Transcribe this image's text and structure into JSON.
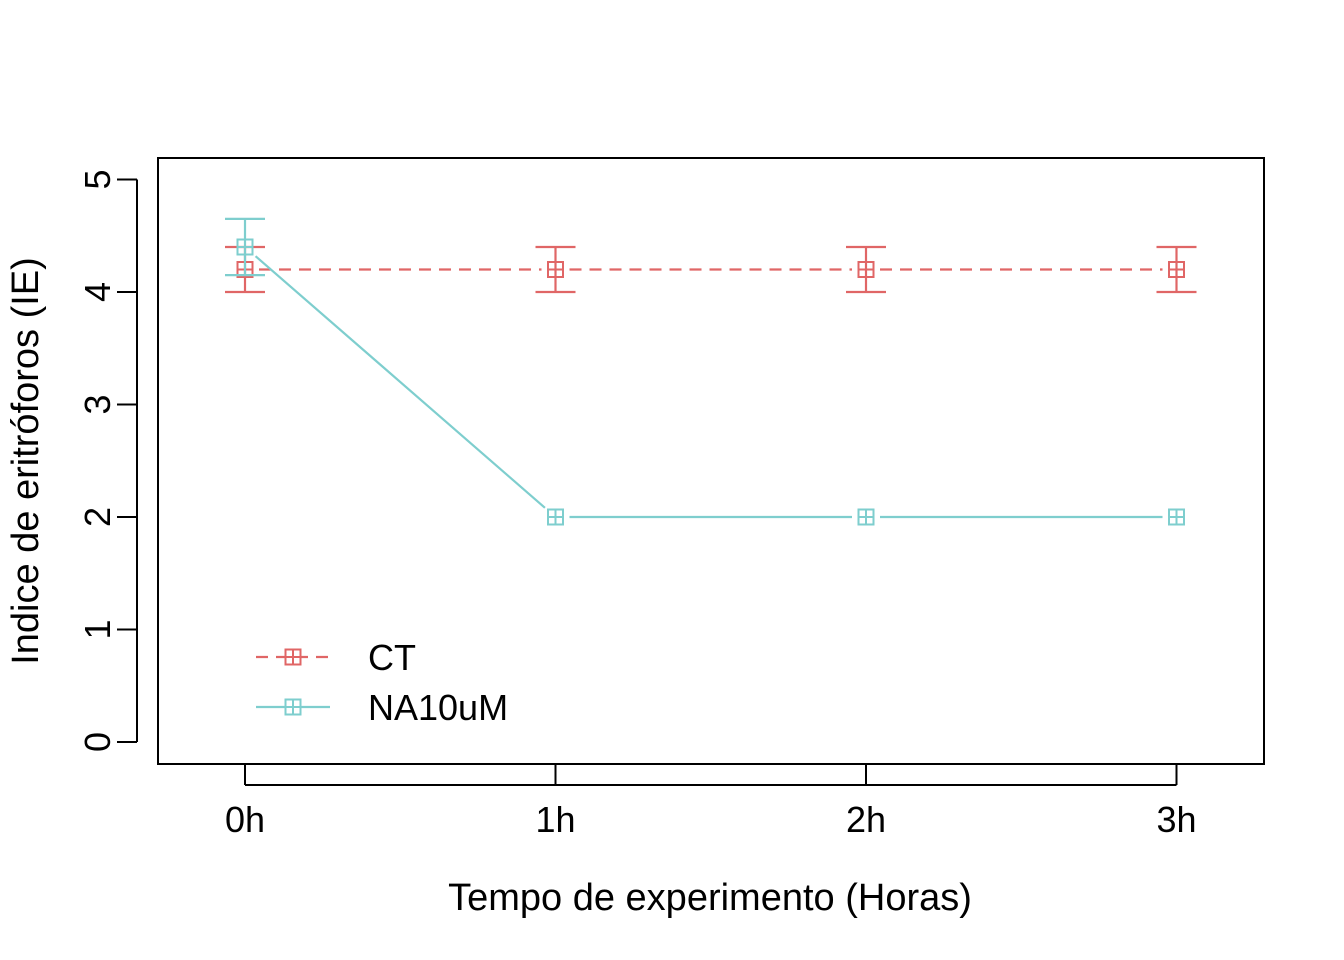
{
  "chart_data": {
    "type": "line",
    "title": "",
    "xlabel": "Tempo de experimento (Horas)",
    "ylabel": "Indice de eritróforos (IE)",
    "categories": [
      "0h",
      "1h",
      "2h",
      "3h"
    ],
    "ylim": [
      0,
      5
    ],
    "yticks": [
      "0",
      "1",
      "2",
      "3",
      "4",
      "5"
    ],
    "grid": false,
    "legend_position": "bottom-left",
    "series": [
      {
        "name": "CT",
        "color": "#E06666",
        "line_style": "dashed",
        "marker": "boxed-plus",
        "values": [
          4.2,
          4.2,
          4.2,
          4.2
        ],
        "error_low": [
          4.0,
          4.0,
          4.0,
          4.0
        ],
        "error_high": [
          4.4,
          4.4,
          4.4,
          4.4
        ]
      },
      {
        "name": "NA10uM",
        "color": "#7ECECE",
        "line_style": "solid",
        "marker": "boxed-plus",
        "values": [
          4.4,
          2.0,
          2.0,
          2.0
        ],
        "error_low": [
          4.15,
          2.0,
          2.0,
          2.0
        ],
        "error_high": [
          4.65,
          2.0,
          2.0,
          2.0
        ]
      }
    ]
  }
}
